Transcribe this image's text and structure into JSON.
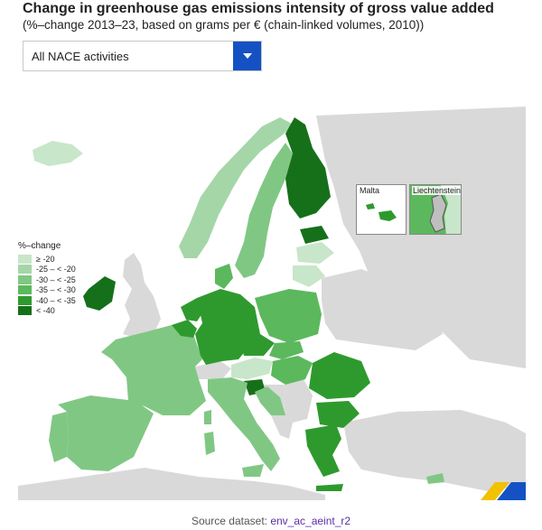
{
  "header": {
    "title": "Change in greenhouse gas emissions intensity of gross value added",
    "subtitle": "(%–change 2013–23, based on grams per € (chain-linked volumes, 2010))"
  },
  "filter": {
    "selected": "All NACE activities",
    "icon": "chevron-down-icon"
  },
  "legend": {
    "title": "%–change",
    "classes": [
      {
        "label": "≥ -20",
        "color": "#c8e6c9"
      },
      {
        "label": "-25 – < -20",
        "color": "#a5d6a7"
      },
      {
        "label": "-30 – < -25",
        "color": "#81c784"
      },
      {
        "label": "-35 – < -30",
        "color": "#5cb85c"
      },
      {
        "label": "-40 – < -35",
        "color": "#2e9a2e"
      },
      {
        "label": "< -40",
        "color": "#16701a"
      }
    ]
  },
  "insets": {
    "malta": "Malta",
    "liechtenstein": "Liechtenstein"
  },
  "colors": {
    "non_member": "#d9d9d9",
    "sea": "#ffffff",
    "no_data": "#bfbfbf",
    "accent": "#1452c4"
  },
  "source": {
    "prefix": "Source dataset: ",
    "dataset": "env_ac_aeint_r2"
  }
}
